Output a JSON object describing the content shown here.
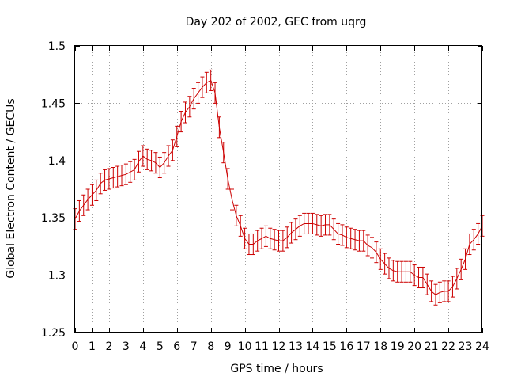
{
  "chart_data": {
    "type": "line",
    "title": "Day 202 of 2002, GEC from uqrg",
    "xlabel": "GPS time / hours",
    "ylabel": "Global Electron Content / GECUs",
    "xlim": [
      0,
      24
    ],
    "ylim": [
      1.25,
      1.5
    ],
    "xticks": [
      "0",
      "1",
      "2",
      "3",
      "4",
      "5",
      "6",
      "7",
      "8",
      "9",
      "10",
      "11",
      "12",
      "13",
      "14",
      "15",
      "16",
      "17",
      "18",
      "19",
      "20",
      "21",
      "22",
      "23",
      "24"
    ],
    "yticks": [
      "1.25",
      "1.3",
      "1.35",
      "1.4",
      "1.45",
      "1.5"
    ],
    "grid": true,
    "legend": "none",
    "color": "#cc0000",
    "series": [
      {
        "x": [
          0,
          0.25,
          0.5,
          0.75,
          1,
          1.25,
          1.5,
          1.75,
          2,
          2.25,
          2.5,
          2.75,
          3,
          3.25,
          3.5,
          3.75,
          4,
          4.25,
          4.5,
          4.75,
          5,
          5.25,
          5.5,
          5.75,
          6,
          6.25,
          6.5,
          6.75,
          7,
          7.25,
          7.5,
          7.75,
          8,
          8.25,
          8.5,
          8.75,
          9,
          9.25,
          9.5,
          9.75,
          10,
          10.25,
          10.5,
          10.75,
          11,
          11.25,
          11.5,
          11.75,
          12,
          12.25,
          12.5,
          12.75,
          13,
          13.25,
          13.5,
          13.75,
          14,
          14.25,
          14.5,
          14.75,
          15,
          15.25,
          15.5,
          15.75,
          16,
          16.25,
          16.5,
          16.75,
          17,
          17.25,
          17.5,
          17.75,
          18,
          18.25,
          18.5,
          18.75,
          19,
          19.25,
          19.5,
          19.75,
          20,
          20.25,
          20.5,
          20.75,
          21,
          21.25,
          21.5,
          21.75,
          22,
          22.25,
          22.5,
          22.75,
          23,
          23.25,
          23.5,
          23.75,
          24
        ],
        "y": [
          1.349,
          1.356,
          1.361,
          1.366,
          1.37,
          1.374,
          1.38,
          1.383,
          1.384,
          1.385,
          1.386,
          1.387,
          1.388,
          1.39,
          1.392,
          1.399,
          1.404,
          1.401,
          1.4,
          1.398,
          1.394,
          1.398,
          1.404,
          1.409,
          1.421,
          1.434,
          1.442,
          1.447,
          1.454,
          1.459,
          1.464,
          1.468,
          1.47,
          1.459,
          1.429,
          1.407,
          1.384,
          1.366,
          1.352,
          1.343,
          1.332,
          1.327,
          1.327,
          1.33,
          1.332,
          1.334,
          1.332,
          1.331,
          1.33,
          1.33,
          1.333,
          1.337,
          1.34,
          1.343,
          1.345,
          1.345,
          1.345,
          1.344,
          1.343,
          1.344,
          1.344,
          1.34,
          1.336,
          1.335,
          1.333,
          1.332,
          1.331,
          1.33,
          1.33,
          1.326,
          1.324,
          1.32,
          1.314,
          1.31,
          1.306,
          1.304,
          1.303,
          1.303,
          1.303,
          1.303,
          1.3,
          1.298,
          1.298,
          1.292,
          1.286,
          1.283,
          1.285,
          1.286,
          1.286,
          1.29,
          1.297,
          1.305,
          1.314,
          1.327,
          1.331,
          1.336,
          1.343
        ],
        "error": [
          0.009,
          0.009,
          0.009,
          0.009,
          0.009,
          0.009,
          0.009,
          0.009,
          0.009,
          0.009,
          0.009,
          0.009,
          0.009,
          0.009,
          0.009,
          0.009,
          0.009,
          0.009,
          0.009,
          0.009,
          0.009,
          0.009,
          0.009,
          0.009,
          0.009,
          0.009,
          0.009,
          0.009,
          0.009,
          0.009,
          0.009,
          0.009,
          0.009,
          0.009,
          0.009,
          0.009,
          0.009,
          0.009,
          0.009,
          0.009,
          0.009,
          0.009,
          0.009,
          0.009,
          0.009,
          0.009,
          0.009,
          0.009,
          0.009,
          0.009,
          0.009,
          0.009,
          0.009,
          0.009,
          0.009,
          0.009,
          0.009,
          0.009,
          0.009,
          0.009,
          0.009,
          0.009,
          0.009,
          0.009,
          0.009,
          0.009,
          0.009,
          0.009,
          0.009,
          0.009,
          0.009,
          0.009,
          0.009,
          0.009,
          0.009,
          0.009,
          0.009,
          0.009,
          0.009,
          0.009,
          0.009,
          0.009,
          0.009,
          0.009,
          0.009,
          0.009,
          0.009,
          0.009,
          0.009,
          0.009,
          0.009,
          0.009,
          0.009,
          0.009,
          0.009,
          0.009,
          0.009
        ]
      }
    ]
  }
}
